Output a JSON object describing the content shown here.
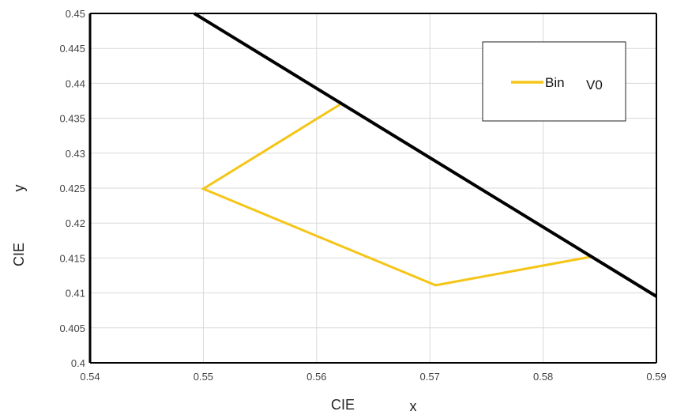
{
  "chart_data": {
    "type": "line",
    "xlabel_parts": [
      "CIE",
      "x"
    ],
    "ylabel_parts": [
      "CIE",
      "y"
    ],
    "xlim": [
      0.54,
      0.59
    ],
    "ylim": [
      0.4,
      0.45
    ],
    "x_ticks": [
      "0.54",
      "0.55",
      "0.56",
      "0.57",
      "0.58",
      "0.59"
    ],
    "y_ticks": [
      "0.4",
      "0.405",
      "0.41",
      "0.415",
      "0.42",
      "0.425",
      "0.43",
      "0.435",
      "0.44",
      "0.445",
      "0.45"
    ],
    "grid": true,
    "legend_position": "top-right",
    "legend_label_parts": [
      "Bin",
      "V0"
    ],
    "series": [
      {
        "color": "#f5c518",
        "points": [
          {
            "x": 0.5621,
            "y": 0.437
          },
          {
            "x": 0.55,
            "y": 0.4249
          },
          {
            "x": 0.5705,
            "y": 0.4111
          },
          {
            "x": 0.5843,
            "y": 0.4152
          }
        ]
      },
      {
        "color": "#000000",
        "points": [
          {
            "x": 0.5492,
            "y": 0.45
          },
          {
            "x": 0.59,
            "y": 0.4095
          }
        ]
      }
    ]
  }
}
